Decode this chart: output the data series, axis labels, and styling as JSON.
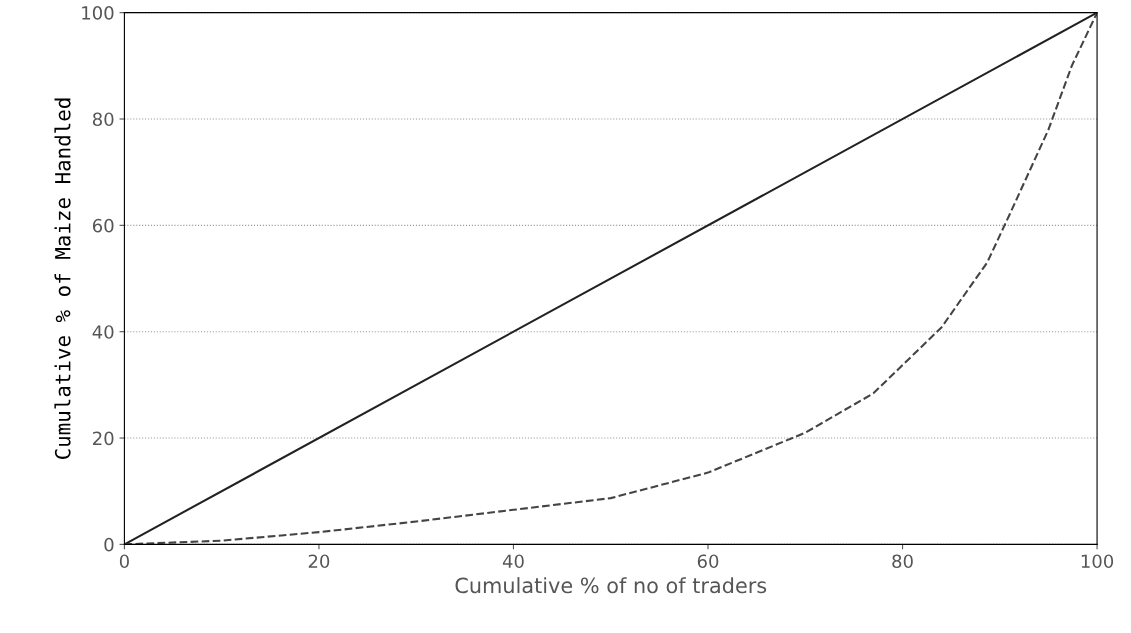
{
  "chart_data": {
    "type": "line",
    "xlabel": "Cumulative % of no of traders",
    "ylabel": "Cumulative % of Maize Handled",
    "series": [
      {
        "color": "#222222",
        "line_style": "solid",
        "x": [
          0,
          100
        ],
        "values": [
          0,
          100
        ]
      },
      {
        "color": "#444444",
        "line_style": "dashed",
        "x": [
          0,
          10,
          20,
          30,
          40,
          50,
          60,
          70,
          77,
          84,
          88.7,
          91,
          95,
          97.4,
          100
        ],
        "values": [
          0,
          0.7,
          2.3,
          4.3,
          6.5,
          8.7,
          13.5,
          21,
          28.4,
          40.8,
          53,
          62,
          78,
          90,
          100
        ]
      }
    ],
    "xlim": [
      0,
      100
    ],
    "ylim": [
      0,
      100
    ],
    "xticks": [
      0,
      20,
      40,
      60,
      80,
      100
    ],
    "yticks": [
      0,
      20,
      40,
      60,
      80,
      100
    ],
    "grid": "y",
    "marker": "none"
  }
}
